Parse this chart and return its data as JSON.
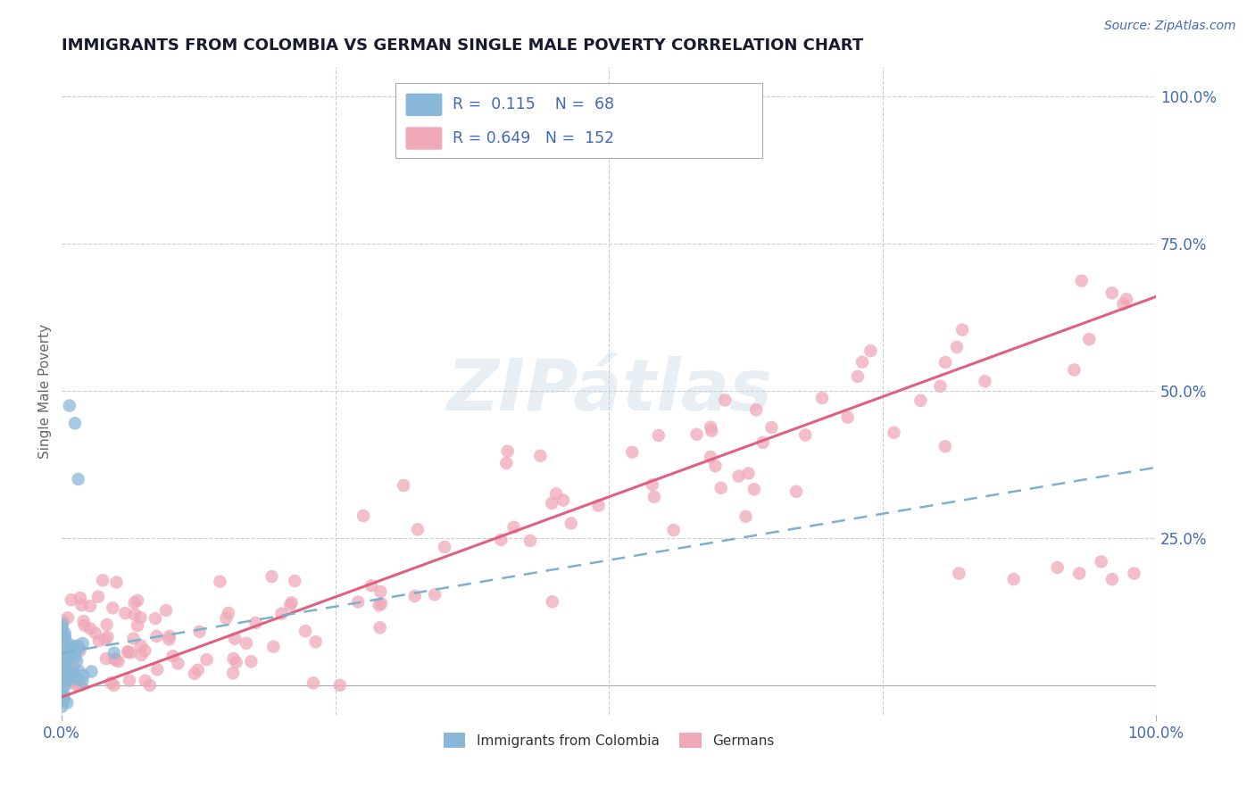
{
  "title": "IMMIGRANTS FROM COLOMBIA VS GERMAN SINGLE MALE POVERTY CORRELATION CHART",
  "source": "Source: ZipAtlas.com",
  "ylabel": "Single Male Poverty",
  "legend_label_1": "Immigrants from Colombia",
  "legend_label_2": "Germans",
  "R1": 0.115,
  "N1": 68,
  "R2": 0.649,
  "N2": 152,
  "color1": "#8ab8d8",
  "color2": "#f0a8b8",
  "line_color1": "#7ab0d0",
  "line_color2": "#e06080",
  "background_color": "#ffffff",
  "grid_color": "#cccccc",
  "title_color": "#1a1a2e",
  "axis_label_color": "#4169b8",
  "watermark": "ZIPátlas",
  "xlim": [
    0,
    1
  ],
  "ylim": [
    -0.05,
    1.05
  ],
  "line2_x0": 0.0,
  "line2_y0": -0.02,
  "line2_x1": 1.0,
  "line2_y1": 0.66,
  "line1_x0": 0.0,
  "line1_y0": 0.055,
  "line1_x1": 1.0,
  "line1_y1": 0.37
}
